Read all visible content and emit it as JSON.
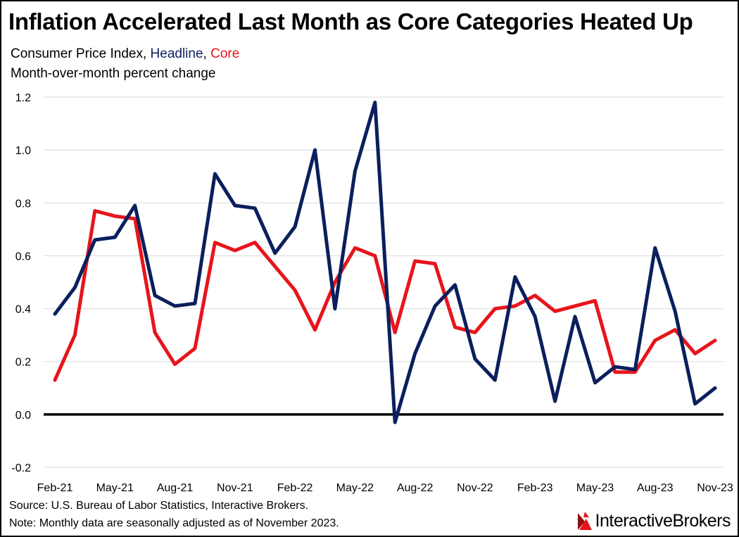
{
  "title": "Inflation Accelerated Last Month as Core Categories Heated Up",
  "subtitle": {
    "prefix": "Consumer Price Index, ",
    "headline": "Headline",
    "comma": ",",
    "space": " ",
    "core": "Core"
  },
  "subtitle2": "Month-over-month percent change",
  "footer": {
    "source": "Source: U.S. Bureau of Labor Statistics, Interactive Brokers.",
    "note": "Note: Monthly data are seasonally adjusted as of November 2023."
  },
  "logo": {
    "text": "InteractiveBrokers",
    "icon": "interactive-brokers-logo-icon"
  },
  "colors": {
    "headline": "#0b1f5c",
    "core": "#e8141b",
    "grid": "#d9d9d9",
    "zero_line": "#000000"
  },
  "chart_data": {
    "type": "line",
    "ylim": [
      -0.2,
      1.2
    ],
    "yticks": [
      -0.2,
      0.0,
      0.2,
      0.4,
      0.6,
      0.8,
      1.0,
      1.2
    ],
    "ytick_labels": [
      "-0.2",
      "0.0",
      "0.2",
      "0.4",
      "0.6",
      "0.8",
      "1.0",
      "1.2"
    ],
    "grid": true,
    "x": [
      "Feb-21",
      "Mar-21",
      "Apr-21",
      "May-21",
      "Jun-21",
      "Jul-21",
      "Aug-21",
      "Sep-21",
      "Oct-21",
      "Nov-21",
      "Dec-21",
      "Jan-22",
      "Feb-22",
      "Mar-22",
      "Apr-22",
      "May-22",
      "Jun-22",
      "Jul-22",
      "Aug-22",
      "Sep-22",
      "Oct-22",
      "Nov-22",
      "Dec-22",
      "Jan-23",
      "Feb-23",
      "Mar-23",
      "Apr-23",
      "May-23",
      "Jun-23",
      "Jul-23",
      "Aug-23",
      "Sep-23",
      "Oct-23",
      "Nov-23"
    ],
    "xtick_labels": [
      "Feb-21",
      "May-21",
      "Aug-21",
      "Nov-21",
      "Feb-22",
      "May-22",
      "Aug-22",
      "Nov-22",
      "Feb-23",
      "May-23",
      "Aug-23",
      "Nov-23"
    ],
    "series": [
      {
        "name": "Headline",
        "color": "#0b1f5c",
        "values": [
          0.38,
          0.48,
          0.66,
          0.67,
          0.79,
          0.45,
          0.41,
          0.42,
          0.91,
          0.79,
          0.78,
          0.61,
          0.71,
          1.0,
          0.4,
          0.92,
          1.18,
          -0.03,
          0.23,
          0.41,
          0.49,
          0.21,
          0.13,
          0.52,
          0.37,
          0.05,
          0.37,
          0.12,
          0.18,
          0.17,
          0.63,
          0.39,
          0.04,
          0.1
        ]
      },
      {
        "name": "Core",
        "color": "#e8141b",
        "values": [
          0.13,
          0.3,
          0.77,
          0.75,
          0.74,
          0.31,
          0.19,
          0.25,
          0.65,
          0.62,
          0.65,
          0.56,
          0.47,
          0.32,
          0.5,
          0.63,
          0.6,
          0.31,
          0.58,
          0.57,
          0.33,
          0.31,
          0.4,
          0.41,
          0.45,
          0.39,
          0.41,
          0.43,
          0.16,
          0.16,
          0.28,
          0.32,
          0.23,
          0.28
        ]
      }
    ]
  }
}
